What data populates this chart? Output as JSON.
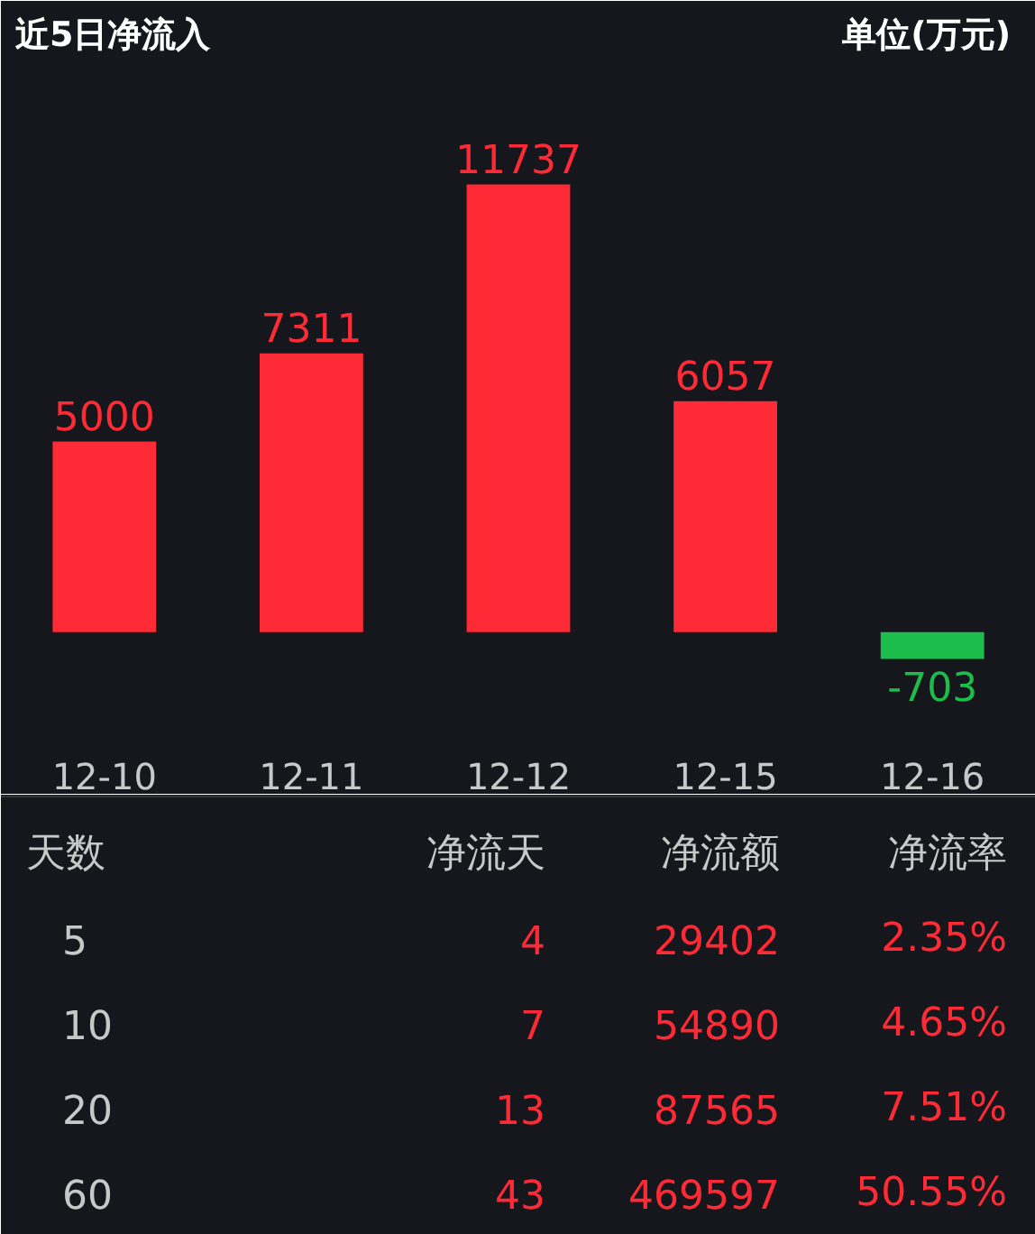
{
  "chart_data": {
    "type": "bar",
    "title": "近5日净流入",
    "subtitle": "单位(万元)",
    "categories": [
      "12-10",
      "12-11",
      "12-12",
      "12-15",
      "12-16"
    ],
    "values": [
      5000,
      7311,
      11737,
      6057,
      -703
    ],
    "colors": [
      "#fe2b36",
      "#fe2b36",
      "#fe2b36",
      "#fe2b36",
      "#1dbd4c"
    ],
    "data_labels": true,
    "annotations": [
      "天数",
      "净流天",
      "净流额",
      "净流率",
      "5",
      "4",
      "29402",
      "2.35%",
      "10",
      "7",
      "54890",
      "4.65%",
      "20",
      "13",
      "87565",
      "7.51%",
      "60",
      "43",
      "469597",
      "50.55%"
    ]
  }
}
